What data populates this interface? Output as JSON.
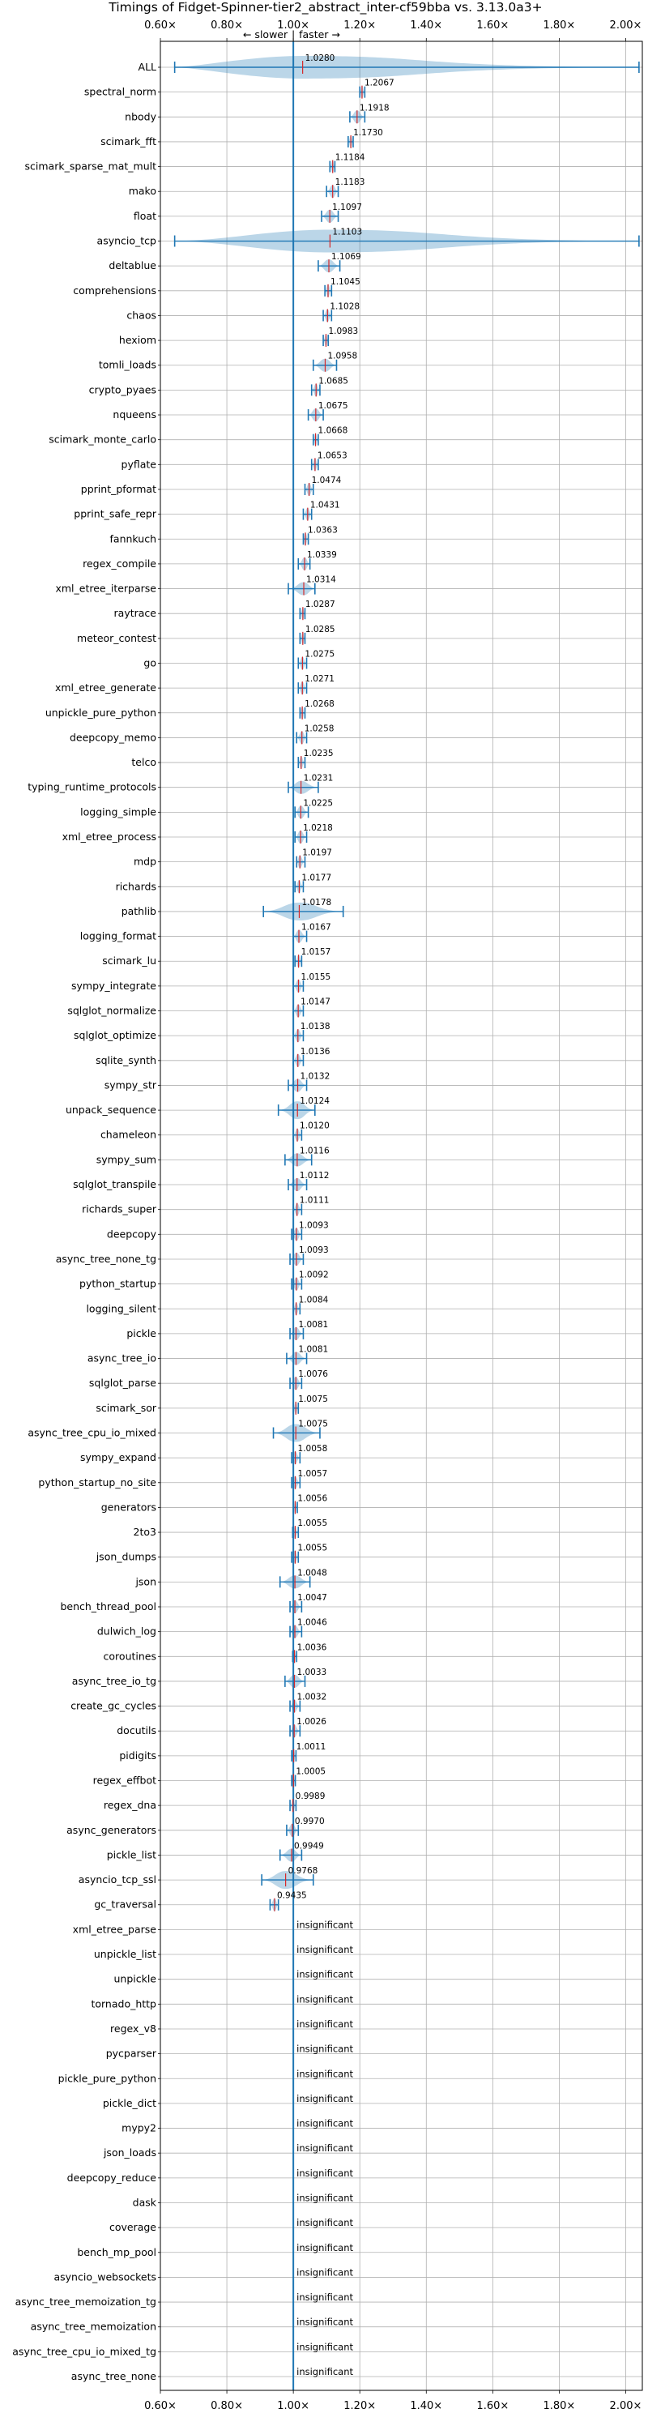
{
  "chart_data": {
    "type": "violin",
    "title": "Timings of Fidget-Spinner-tier2_abstract_inter-cf59bba vs. 3.13.0a3+",
    "annotation_left": "← slower",
    "annotation_right": "faster →",
    "separator": "|",
    "xlim": [
      0.6,
      2.05
    ],
    "xticks": [
      0.6,
      0.8,
      1.0,
      1.2,
      1.4,
      1.6,
      1.8,
      2.0
    ],
    "xtick_labels": [
      "0.60×",
      "0.80×",
      "1.00×",
      "1.20×",
      "1.40×",
      "1.60×",
      "1.80×",
      "2.00×"
    ],
    "reference_line": 1.0,
    "grid": true,
    "insignificant_label": "insignificant",
    "colors": {
      "violin": "#1f77b4",
      "median": "#d62728",
      "grid": "#b0b0b0",
      "text": "#000000"
    },
    "benchmarks": [
      {
        "name": "ALL",
        "value": 1.028,
        "label": "1.0280",
        "min": 0.643,
        "max": 2.04
      },
      {
        "name": "spectral_norm",
        "value": 1.2067,
        "label": "1.2067",
        "min": 1.2,
        "max": 1.215
      },
      {
        "name": "nbody",
        "value": 1.1918,
        "label": "1.1918",
        "min": 1.17,
        "max": 1.215
      },
      {
        "name": "scimark_fft",
        "value": 1.173,
        "label": "1.1730",
        "min": 1.165,
        "max": 1.18
      },
      {
        "name": "scimark_sparse_mat_mult",
        "value": 1.1184,
        "label": "1.1184",
        "min": 1.11,
        "max": 1.125
      },
      {
        "name": "mako",
        "value": 1.1183,
        "label": "1.1183",
        "min": 1.1,
        "max": 1.135
      },
      {
        "name": "float",
        "value": 1.1097,
        "label": "1.1097",
        "min": 1.085,
        "max": 1.135
      },
      {
        "name": "asyncio_tcp",
        "value": 1.1103,
        "label": "1.1103",
        "min": 0.643,
        "max": 2.04
      },
      {
        "name": "deltablue",
        "value": 1.1069,
        "label": "1.1069",
        "min": 1.075,
        "max": 1.14
      },
      {
        "name": "comprehensions",
        "value": 1.1045,
        "label": "1.1045",
        "min": 1.095,
        "max": 1.115
      },
      {
        "name": "chaos",
        "value": 1.1028,
        "label": "1.1028",
        "min": 1.09,
        "max": 1.115
      },
      {
        "name": "hexiom",
        "value": 1.0983,
        "label": "1.0983",
        "min": 1.09,
        "max": 1.105
      },
      {
        "name": "tomli_loads",
        "value": 1.0958,
        "label": "1.0958",
        "min": 1.06,
        "max": 1.13
      },
      {
        "name": "crypto_pyaes",
        "value": 1.0685,
        "label": "1.0685",
        "min": 1.055,
        "max": 1.08
      },
      {
        "name": "nqueens",
        "value": 1.0675,
        "label": "1.0675",
        "min": 1.045,
        "max": 1.09
      },
      {
        "name": "scimark_monte_carlo",
        "value": 1.0668,
        "label": "1.0668",
        "min": 1.06,
        "max": 1.075
      },
      {
        "name": "pyflate",
        "value": 1.0653,
        "label": "1.0653",
        "min": 1.055,
        "max": 1.075
      },
      {
        "name": "pprint_pformat",
        "value": 1.0474,
        "label": "1.0474",
        "min": 1.035,
        "max": 1.06
      },
      {
        "name": "pprint_safe_repr",
        "value": 1.0431,
        "label": "1.0431",
        "min": 1.03,
        "max": 1.055
      },
      {
        "name": "fannkuch",
        "value": 1.0363,
        "label": "1.0363",
        "min": 1.03,
        "max": 1.045
      },
      {
        "name": "regex_compile",
        "value": 1.0339,
        "label": "1.0339",
        "min": 1.015,
        "max": 1.05
      },
      {
        "name": "xml_etree_iterparse",
        "value": 1.0314,
        "label": "1.0314",
        "min": 0.985,
        "max": 1.065
      },
      {
        "name": "raytrace",
        "value": 1.0287,
        "label": "1.0287",
        "min": 1.02,
        "max": 1.035
      },
      {
        "name": "meteor_contest",
        "value": 1.0285,
        "label": "1.0285",
        "min": 1.02,
        "max": 1.035
      },
      {
        "name": "go",
        "value": 1.0275,
        "label": "1.0275",
        "min": 1.015,
        "max": 1.04
      },
      {
        "name": "xml_etree_generate",
        "value": 1.0271,
        "label": "1.0271",
        "min": 1.015,
        "max": 1.04
      },
      {
        "name": "unpickle_pure_python",
        "value": 1.0268,
        "label": "1.0268",
        "min": 1.02,
        "max": 1.035
      },
      {
        "name": "deepcopy_memo",
        "value": 1.0258,
        "label": "1.0258",
        "min": 1.01,
        "max": 1.04
      },
      {
        "name": "telco",
        "value": 1.0235,
        "label": "1.0235",
        "min": 1.015,
        "max": 1.035
      },
      {
        "name": "typing_runtime_protocols",
        "value": 1.0231,
        "label": "1.0231",
        "min": 0.985,
        "max": 1.075
      },
      {
        "name": "logging_simple",
        "value": 1.0225,
        "label": "1.0225",
        "min": 1.005,
        "max": 1.045
      },
      {
        "name": "xml_etree_process",
        "value": 1.0218,
        "label": "1.0218",
        "min": 1.005,
        "max": 1.04
      },
      {
        "name": "mdp",
        "value": 1.0197,
        "label": "1.0197",
        "min": 1.01,
        "max": 1.035
      },
      {
        "name": "richards",
        "value": 1.0177,
        "label": "1.0177",
        "min": 1.005,
        "max": 1.03
      },
      {
        "name": "pathlib",
        "value": 1.0178,
        "label": "1.0178",
        "min": 0.91,
        "max": 1.15
      },
      {
        "name": "logging_format",
        "value": 1.0167,
        "label": "1.0167",
        "min": 1.0,
        "max": 1.04
      },
      {
        "name": "scimark_lu",
        "value": 1.0157,
        "label": "1.0157",
        "min": 1.005,
        "max": 1.025
      },
      {
        "name": "sympy_integrate",
        "value": 1.0155,
        "label": "1.0155",
        "min": 1.0,
        "max": 1.03
      },
      {
        "name": "sqlglot_normalize",
        "value": 1.0147,
        "label": "1.0147",
        "min": 1.0,
        "max": 1.03
      },
      {
        "name": "sqlglot_optimize",
        "value": 1.0138,
        "label": "1.0138",
        "min": 1.0,
        "max": 1.03
      },
      {
        "name": "sqlite_synth",
        "value": 1.0136,
        "label": "1.0136",
        "min": 1.0,
        "max": 1.03
      },
      {
        "name": "sympy_str",
        "value": 1.0132,
        "label": "1.0132",
        "min": 0.985,
        "max": 1.04
      },
      {
        "name": "unpack_sequence",
        "value": 1.0124,
        "label": "1.0124",
        "min": 0.955,
        "max": 1.065
      },
      {
        "name": "chameleon",
        "value": 1.012,
        "label": "1.0120",
        "min": 1.0,
        "max": 1.025
      },
      {
        "name": "sympy_sum",
        "value": 1.0116,
        "label": "1.0116",
        "min": 0.975,
        "max": 1.055
      },
      {
        "name": "sqlglot_transpile",
        "value": 1.0112,
        "label": "1.0112",
        "min": 0.985,
        "max": 1.04
      },
      {
        "name": "richards_super",
        "value": 1.0111,
        "label": "1.0111",
        "min": 1.0,
        "max": 1.025
      },
      {
        "name": "deepcopy",
        "value": 1.0093,
        "label": "1.0093",
        "min": 0.995,
        "max": 1.025
      },
      {
        "name": "async_tree_none_tg",
        "value": 1.0093,
        "label": "1.0093",
        "min": 0.99,
        "max": 1.03
      },
      {
        "name": "python_startup",
        "value": 1.0092,
        "label": "1.0092",
        "min": 0.995,
        "max": 1.025
      },
      {
        "name": "logging_silent",
        "value": 1.0084,
        "label": "1.0084",
        "min": 1.0,
        "max": 1.02
      },
      {
        "name": "pickle",
        "value": 1.0081,
        "label": "1.0081",
        "min": 0.99,
        "max": 1.03
      },
      {
        "name": "async_tree_io",
        "value": 1.0081,
        "label": "1.0081",
        "min": 0.98,
        "max": 1.04
      },
      {
        "name": "sqlglot_parse",
        "value": 1.0076,
        "label": "1.0076",
        "min": 0.99,
        "max": 1.025
      },
      {
        "name": "scimark_sor",
        "value": 1.0075,
        "label": "1.0075",
        "min": 1.0,
        "max": 1.015
      },
      {
        "name": "async_tree_cpu_io_mixed",
        "value": 1.0075,
        "label": "1.0075",
        "min": 0.94,
        "max": 1.08
      },
      {
        "name": "sympy_expand",
        "value": 1.0058,
        "label": "1.0058",
        "min": 0.995,
        "max": 1.02
      },
      {
        "name": "python_startup_no_site",
        "value": 1.0057,
        "label": "1.0057",
        "min": 0.995,
        "max": 1.02
      },
      {
        "name": "generators",
        "value": 1.0056,
        "label": "1.0056",
        "min": 1.0,
        "max": 1.012
      },
      {
        "name": "2to3",
        "value": 1.0055,
        "label": "1.0055",
        "min": 0.998,
        "max": 1.015
      },
      {
        "name": "json_dumps",
        "value": 1.0055,
        "label": "1.0055",
        "min": 0.995,
        "max": 1.015
      },
      {
        "name": "json",
        "value": 1.0048,
        "label": "1.0048",
        "min": 0.96,
        "max": 1.05
      },
      {
        "name": "bench_thread_pool",
        "value": 1.0047,
        "label": "1.0047",
        "min": 0.99,
        "max": 1.025
      },
      {
        "name": "dulwich_log",
        "value": 1.0046,
        "label": "1.0046",
        "min": 0.99,
        "max": 1.025
      },
      {
        "name": "coroutines",
        "value": 1.0036,
        "label": "1.0036",
        "min": 0.998,
        "max": 1.01
      },
      {
        "name": "async_tree_io_tg",
        "value": 1.0033,
        "label": "1.0033",
        "min": 0.975,
        "max": 1.035
      },
      {
        "name": "create_gc_cycles",
        "value": 1.0032,
        "label": "1.0032",
        "min": 0.99,
        "max": 1.02
      },
      {
        "name": "docutils",
        "value": 1.0026,
        "label": "1.0026",
        "min": 0.99,
        "max": 1.02
      },
      {
        "name": "pidigits",
        "value": 1.0011,
        "label": "1.0011",
        "min": 0.995,
        "max": 1.008
      },
      {
        "name": "regex_effbot",
        "value": 1.0005,
        "label": "1.0005",
        "min": 0.995,
        "max": 1.006
      },
      {
        "name": "regex_dna",
        "value": 0.9989,
        "label": "0.9989",
        "min": 0.99,
        "max": 1.008
      },
      {
        "name": "async_generators",
        "value": 0.997,
        "label": "0.9970",
        "min": 0.98,
        "max": 1.015
      },
      {
        "name": "pickle_list",
        "value": 0.9949,
        "label": "0.9949",
        "min": 0.96,
        "max": 1.025
      },
      {
        "name": "asyncio_tcp_ssl",
        "value": 0.9768,
        "label": "0.9768",
        "min": 0.905,
        "max": 1.06
      },
      {
        "name": "gc_traversal",
        "value": 0.9435,
        "label": "0.9435",
        "min": 0.93,
        "max": 0.955
      },
      {
        "name": "xml_etree_parse",
        "value": null,
        "label": null,
        "min": null,
        "max": null
      },
      {
        "name": "unpickle_list",
        "value": null,
        "label": null,
        "min": null,
        "max": null
      },
      {
        "name": "unpickle",
        "value": null,
        "label": null,
        "min": null,
        "max": null
      },
      {
        "name": "tornado_http",
        "value": null,
        "label": null,
        "min": null,
        "max": null
      },
      {
        "name": "regex_v8",
        "value": null,
        "label": null,
        "min": null,
        "max": null
      },
      {
        "name": "pycparser",
        "value": null,
        "label": null,
        "min": null,
        "max": null
      },
      {
        "name": "pickle_pure_python",
        "value": null,
        "label": null,
        "min": null,
        "max": null
      },
      {
        "name": "pickle_dict",
        "value": null,
        "label": null,
        "min": null,
        "max": null
      },
      {
        "name": "mypy2",
        "value": null,
        "label": null,
        "min": null,
        "max": null
      },
      {
        "name": "json_loads",
        "value": null,
        "label": null,
        "min": null,
        "max": null
      },
      {
        "name": "deepcopy_reduce",
        "value": null,
        "label": null,
        "min": null,
        "max": null
      },
      {
        "name": "dask",
        "value": null,
        "label": null,
        "min": null,
        "max": null
      },
      {
        "name": "coverage",
        "value": null,
        "label": null,
        "min": null,
        "max": null
      },
      {
        "name": "bench_mp_pool",
        "value": null,
        "label": null,
        "min": null,
        "max": null
      },
      {
        "name": "asyncio_websockets",
        "value": null,
        "label": null,
        "min": null,
        "max": null
      },
      {
        "name": "async_tree_memoization_tg",
        "value": null,
        "label": null,
        "min": null,
        "max": null
      },
      {
        "name": "async_tree_memoization",
        "value": null,
        "label": null,
        "min": null,
        "max": null
      },
      {
        "name": "async_tree_cpu_io_mixed_tg",
        "value": null,
        "label": null,
        "min": null,
        "max": null
      },
      {
        "name": "async_tree_none",
        "value": null,
        "label": null,
        "min": null,
        "max": null
      }
    ]
  }
}
